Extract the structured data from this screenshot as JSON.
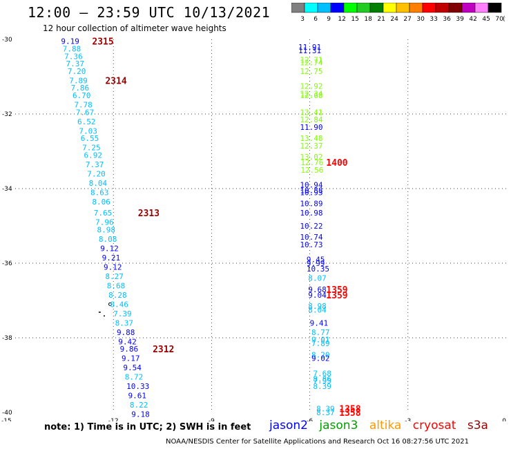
{
  "header": {
    "title": "12:00 – 23:59 UTC 10/13/2021",
    "subtitle": "12 hour collection of altimeter wave heights"
  },
  "color_scale": {
    "labels": [
      "3",
      "6",
      "9",
      "12",
      "15",
      "18",
      "21",
      "24",
      "27",
      "30",
      "33",
      "36",
      "39",
      "42",
      "45",
      "70",
      "(ft)"
    ],
    "colors": [
      "#808080",
      "#00ffff",
      "#00bfff",
      "#0000ff",
      "#00ff00",
      "#22cc22",
      "#008000",
      "#ffff00",
      "#ffc000",
      "#ff8000",
      "#ff0000",
      "#c00000",
      "#800000",
      "#c000c0",
      "#ff80ff",
      "#000000"
    ]
  },
  "note": "note:  1) Time is in UTC; 2) SWH is in feet",
  "legend": [
    {
      "label": "jason2",
      "color": "#0000ff"
    },
    {
      "label": "jason3",
      "color": "#00a000"
    },
    {
      "label": "altika",
      "color": "#ff9900"
    },
    {
      "label": "cryosat",
      "color": "#ff0000"
    },
    {
      "label": "s3a",
      "color": "#990000"
    }
  ],
  "footer": "NOAA/NESDIS Center for Satellite Applications and Research    Oct 16 08:27:56 UTC 2021",
  "chart_data": {
    "type": "scatter",
    "xlim": [
      -15,
      0
    ],
    "ylim": [
      -40,
      -30
    ],
    "xticks": [
      -15,
      -12,
      -9,
      -6,
      -3,
      0
    ],
    "yticks": [
      -30,
      -32,
      -34,
      -36,
      -38,
      -40
    ],
    "grid": true,
    "series": [
      {
        "name": "west track",
        "points": [
          {
            "lon": -13.6,
            "lat": -30.05,
            "v": "9.19",
            "c": "#0000ff"
          },
          {
            "lon": -13.55,
            "lat": -30.25,
            "v": "7.88",
            "c": "#00bfff"
          },
          {
            "lon": -13.5,
            "lat": -30.45,
            "v": "7.36",
            "c": "#00bfff"
          },
          {
            "lon": -13.45,
            "lat": -30.65,
            "v": "7.37",
            "c": "#00bfff"
          },
          {
            "lon": -13.4,
            "lat": -30.85,
            "v": "7.20",
            "c": "#00bfff"
          },
          {
            "lon": -13.35,
            "lat": -31.1,
            "v": "7.89",
            "c": "#00bfff"
          },
          {
            "lon": -13.3,
            "lat": -31.3,
            "v": "7.86",
            "c": "#00bfff"
          },
          {
            "lon": -13.25,
            "lat": -31.5,
            "v": "6.70",
            "c": "#00bfff"
          },
          {
            "lon": -13.2,
            "lat": -31.75,
            "v": "7.78",
            "c": "#00bfff"
          },
          {
            "lon": -13.15,
            "lat": -31.95,
            "v": "7.67",
            "c": "#00bfff"
          },
          {
            "lon": -13.1,
            "lat": -32.2,
            "v": "6.52",
            "c": "#00bfff"
          },
          {
            "lon": -13.05,
            "lat": -32.45,
            "v": "7.03",
            "c": "#00bfff"
          },
          {
            "lon": -13.0,
            "lat": -32.65,
            "v": "6.55",
            "c": "#00bfff"
          },
          {
            "lon": -12.95,
            "lat": -32.9,
            "v": "7.25",
            "c": "#00bfff"
          },
          {
            "lon": -12.9,
            "lat": -33.1,
            "v": "6.92",
            "c": "#00bfff"
          },
          {
            "lon": -12.85,
            "lat": -33.35,
            "v": "7.37",
            "c": "#00bfff"
          },
          {
            "lon": -12.8,
            "lat": -33.6,
            "v": "7.20",
            "c": "#00bfff"
          },
          {
            "lon": -12.75,
            "lat": -33.85,
            "v": "8.04",
            "c": "#00bfff"
          },
          {
            "lon": -12.7,
            "lat": -34.1,
            "v": "8.63",
            "c": "#00bfff"
          },
          {
            "lon": -12.65,
            "lat": -34.35,
            "v": "8.06",
            "c": "#00bfff"
          },
          {
            "lon": -12.6,
            "lat": -34.65,
            "v": "7.65",
            "c": "#00bfff"
          },
          {
            "lon": -12.55,
            "lat": -34.9,
            "v": "7.96",
            "c": "#00bfff"
          },
          {
            "lon": -12.5,
            "lat": -35.1,
            "v": "8.98",
            "c": "#00bfff"
          },
          {
            "lon": -12.45,
            "lat": -35.35,
            "v": "8.08",
            "c": "#00bfff"
          },
          {
            "lon": -12.4,
            "lat": -35.6,
            "v": "9.12",
            "c": "#0000ff"
          },
          {
            "lon": -12.35,
            "lat": -35.85,
            "v": "9.21",
            "c": "#0000ff"
          },
          {
            "lon": -12.3,
            "lat": -36.1,
            "v": "9.12",
            "c": "#0000ff"
          },
          {
            "lon": -12.25,
            "lat": -36.35,
            "v": "8.27",
            "c": "#00bfff"
          },
          {
            "lon": -12.2,
            "lat": -36.6,
            "v": "8.68",
            "c": "#00bfff"
          },
          {
            "lon": -12.15,
            "lat": -36.85,
            "v": "8.28",
            "c": "#00bfff"
          },
          {
            "lon": -12.1,
            "lat": -37.1,
            "v": "8.46",
            "c": "#00bfff"
          },
          {
            "lon": -12.0,
            "lat": -37.35,
            "v": "7.39",
            "c": "#00bfff"
          },
          {
            "lon": -11.95,
            "lat": -37.6,
            "v": "8.37",
            "c": "#00bfff"
          },
          {
            "lon": -11.9,
            "lat": -37.85,
            "v": "9.88",
            "c": "#0000ff"
          },
          {
            "lon": -11.85,
            "lat": -38.1,
            "v": "9.42",
            "c": "#0000ff"
          },
          {
            "lon": -11.8,
            "lat": -38.3,
            "v": "9.86",
            "c": "#0000ff"
          },
          {
            "lon": -11.75,
            "lat": -38.55,
            "v": "9.17",
            "c": "#0000ff"
          },
          {
            "lon": -11.7,
            "lat": -38.8,
            "v": "9.54",
            "c": "#0000ff"
          },
          {
            "lon": -11.65,
            "lat": -39.05,
            "v": "8.72",
            "c": "#00bfff"
          },
          {
            "lon": -11.6,
            "lat": -39.3,
            "v": "10.33",
            "c": "#0000ff"
          },
          {
            "lon": -11.55,
            "lat": -39.55,
            "v": "9.61",
            "c": "#0000ff"
          },
          {
            "lon": -11.5,
            "lat": -39.8,
            "v": "8.22",
            "c": "#00bfff"
          },
          {
            "lon": -11.45,
            "lat": -40.05,
            "v": "9.18",
            "c": "#0000ff"
          }
        ]
      },
      {
        "name": "east track",
        "points": [
          {
            "lon": -6.35,
            "lat": -30.2,
            "v": "11.91",
            "c": "#0000ff"
          },
          {
            "lon": -6.35,
            "lat": -30.3,
            "v": "11.31",
            "c": "#0000ff"
          },
          {
            "lon": -6.3,
            "lat": -30.55,
            "v": "12.71",
            "c": "#7fff00"
          },
          {
            "lon": -6.3,
            "lat": -30.62,
            "v": "12.74",
            "c": "#7fff00"
          },
          {
            "lon": -6.3,
            "lat": -30.85,
            "v": "12.75",
            "c": "#7fff00"
          },
          {
            "lon": -6.3,
            "lat": -31.25,
            "v": "12.92",
            "c": "#7fff00"
          },
          {
            "lon": -6.3,
            "lat": -31.45,
            "v": "12.34",
            "c": "#7fff00"
          },
          {
            "lon": -6.3,
            "lat": -31.5,
            "v": "12.68",
            "c": "#7fff00"
          },
          {
            "lon": -6.3,
            "lat": -31.95,
            "v": "13.41",
            "c": "#7fff00"
          },
          {
            "lon": -6.3,
            "lat": -32.15,
            "v": "12.84",
            "c": "#7fff00"
          },
          {
            "lon": -6.3,
            "lat": -32.35,
            "v": "11.90",
            "c": "#0000ff"
          },
          {
            "lon": -6.3,
            "lat": -32.65,
            "v": "13.48",
            "c": "#7fff00"
          },
          {
            "lon": -6.3,
            "lat": -32.85,
            "v": "12.37",
            "c": "#7fff00"
          },
          {
            "lon": -6.3,
            "lat": -33.15,
            "v": "13.02",
            "c": "#7fff00"
          },
          {
            "lon": -6.28,
            "lat": -33.3,
            "v": "12.76",
            "c": "#7fff00"
          },
          {
            "lon": -6.28,
            "lat": -33.5,
            "v": "12.56",
            "c": "#7fff00"
          },
          {
            "lon": -6.3,
            "lat": -33.9,
            "v": "10.94",
            "c": "#0000ff"
          },
          {
            "lon": -6.3,
            "lat": -34.05,
            "v": "10.88",
            "c": "#0000ff"
          },
          {
            "lon": -6.3,
            "lat": -34.1,
            "v": "10.93",
            "c": "#0000ff"
          },
          {
            "lon": -6.3,
            "lat": -34.4,
            "v": "10.89",
            "c": "#0000ff"
          },
          {
            "lon": -6.3,
            "lat": -34.65,
            "v": "10.98",
            "c": "#0000ff"
          },
          {
            "lon": -6.3,
            "lat": -35.0,
            "v": "10.22",
            "c": "#0000ff"
          },
          {
            "lon": -6.3,
            "lat": -35.3,
            "v": "10.74",
            "c": "#0000ff"
          },
          {
            "lon": -6.3,
            "lat": -35.5,
            "v": "10.73",
            "c": "#0000ff"
          },
          {
            "lon": -6.1,
            "lat": -35.9,
            "v": "9.45",
            "c": "#0000ff"
          },
          {
            "lon": -6.1,
            "lat": -36.0,
            "v": "9.99",
            "c": "#0000ff"
          },
          {
            "lon": -6.1,
            "lat": -36.15,
            "v": "10.35",
            "c": "#0000ff"
          },
          {
            "lon": -6.05,
            "lat": -36.4,
            "v": "8.07",
            "c": "#00bfff"
          },
          {
            "lon": -6.05,
            "lat": -36.7,
            "v": "9.68",
            "c": "#0000ff"
          },
          {
            "lon": -6.05,
            "lat": -36.85,
            "v": "9.04",
            "c": "#0000ff"
          },
          {
            "lon": -6.05,
            "lat": -37.15,
            "v": "8.98",
            "c": "#00bfff"
          },
          {
            "lon": -6.05,
            "lat": -37.25,
            "v": "8.04",
            "c": "#00bfff"
          },
          {
            "lon": -6.0,
            "lat": -37.6,
            "v": "9.41",
            "c": "#0000ff"
          },
          {
            "lon": -5.95,
            "lat": -37.85,
            "v": "8.77",
            "c": "#00bfff"
          },
          {
            "lon": -5.95,
            "lat": -38.05,
            "v": "9.01",
            "c": "#00bfff"
          },
          {
            "lon": -5.95,
            "lat": -38.15,
            "v": "7.89",
            "c": "#00bfff"
          },
          {
            "lon": -5.95,
            "lat": -38.45,
            "v": "8.20",
            "c": "#00bfff"
          },
          {
            "lon": -5.95,
            "lat": -38.55,
            "v": "9.02",
            "c": "#0000ff"
          },
          {
            "lon": -5.9,
            "lat": -38.95,
            "v": "7.68",
            "c": "#00bfff"
          },
          {
            "lon": -5.9,
            "lat": -39.1,
            "v": "8.86",
            "c": "#00bfff"
          },
          {
            "lon": -5.9,
            "lat": -39.15,
            "v": "7.95",
            "c": "#00bfff"
          },
          {
            "lon": -5.9,
            "lat": -39.3,
            "v": "8.39",
            "c": "#00bfff"
          },
          {
            "lon": -5.8,
            "lat": -39.9,
            "v": "8.39",
            "c": "#00bfff"
          },
          {
            "lon": -5.8,
            "lat": -40.0,
            "v": "8.37",
            "c": "#00bfff"
          }
        ]
      }
    ],
    "time_labels": [
      {
        "lon": -12.65,
        "lat": -30.05,
        "text": "2315",
        "c": "#990000"
      },
      {
        "lon": -12.25,
        "lat": -31.1,
        "text": "2314",
        "c": "#990000"
      },
      {
        "lon": -11.25,
        "lat": -34.65,
        "text": "2313",
        "c": "#990000"
      },
      {
        "lon": -10.8,
        "lat": -38.3,
        "text": "2312",
        "c": "#990000"
      },
      {
        "lon": -5.5,
        "lat": -33.3,
        "text": "1400",
        "c": "#ff0000"
      },
      {
        "lon": -5.5,
        "lat": -36.7,
        "text": "1359",
        "c": "#ff0000"
      },
      {
        "lon": -5.5,
        "lat": -36.85,
        "text": "1359",
        "c": "#ff0000"
      },
      {
        "lon": -5.1,
        "lat": -39.9,
        "text": "1358",
        "c": "#ff0000"
      },
      {
        "lon": -5.1,
        "lat": -40.0,
        "text": "1358",
        "c": "#ff0000"
      }
    ]
  }
}
